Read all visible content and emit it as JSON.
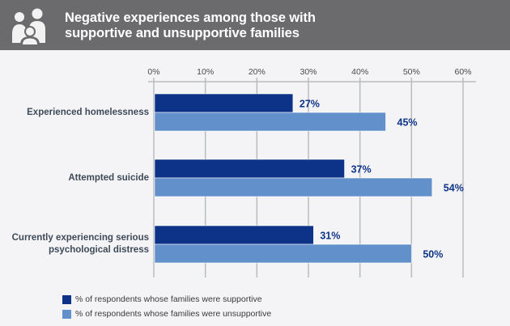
{
  "header": {
    "icon": "family-icon",
    "title_line1": "Negative experiences among those with",
    "title_line2": "supportive and unsupportive families"
  },
  "colors": {
    "supportive": "#0d3388",
    "unsupportive": "#6290cb",
    "value_label": "#0d3388",
    "gridline": "#b9bcbf",
    "header_bg": "#6b6b6e",
    "background": "#f4f4f6"
  },
  "chart_data": {
    "type": "bar",
    "orientation": "horizontal",
    "title": "Negative experiences among those with supportive and unsupportive families",
    "categories": [
      "Experienced homelessness",
      "Attempted suicide",
      "Currently experiencing serious psychological distress"
    ],
    "series": [
      {
        "name": "% of respondents whose families were supportive",
        "values": [
          27,
          37,
          31
        ]
      },
      {
        "name": "% of respondents whose families were unsupportive",
        "values": [
          45,
          54,
          50
        ]
      }
    ],
    "value_labels": [
      [
        "27%",
        "37%",
        "31%"
      ],
      [
        "45%",
        "54%",
        "50%"
      ]
    ],
    "xlim": [
      0,
      60
    ],
    "xticks": [
      0,
      10,
      20,
      30,
      40,
      50,
      60
    ],
    "xtick_labels": [
      "0%",
      "10%",
      "20%",
      "30%",
      "40%",
      "50%",
      "60%"
    ],
    "xaxis_position": "top",
    "grid": true,
    "legend_position": "bottom-left",
    "xlabel": "",
    "ylabel": ""
  },
  "category_label_lines": [
    [
      "Experienced homelessness"
    ],
    [
      "Attempted suicide"
    ],
    [
      "Currently experiencing serious",
      "psychological distress"
    ]
  ],
  "legend": [
    {
      "label": "% of respondents whose families were supportive",
      "series": "supportive"
    },
    {
      "label": "% of respondents whose families were unsupportive",
      "series": "unsupportive"
    }
  ]
}
